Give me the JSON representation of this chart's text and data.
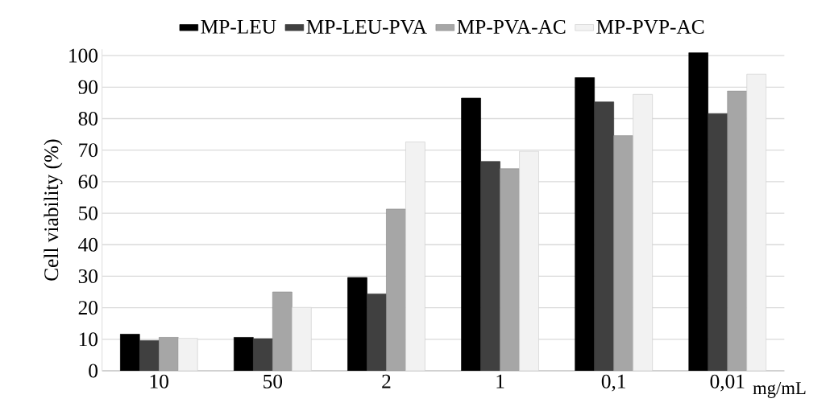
{
  "chart_data": {
    "type": "bar",
    "ylabel": "Cell viability (%)",
    "xlabel": "mg/mL",
    "categories": [
      "10",
      "50",
      "2",
      "1",
      "0,1",
      "0,01"
    ],
    "series": [
      {
        "name": "MP-LEU",
        "color": "#000000",
        "values": [
          11.6,
          10.6,
          29.6,
          86.5,
          93.0,
          100.9
        ]
      },
      {
        "name": "MP-LEU-PVA",
        "color": "#404040",
        "values": [
          9.6,
          10.2,
          24.4,
          66.4,
          85.3,
          81.6
        ]
      },
      {
        "name": "MP-PVA-AC",
        "color": "#a6a6a6",
        "values": [
          10.6,
          25.0,
          51.3,
          64.1,
          74.6,
          88.8
        ]
      },
      {
        "name": "MP-PVP-AC",
        "color": "#f2f2f2",
        "values": [
          10.3,
          20.1,
          72.6,
          69.6,
          87.7,
          94.1
        ]
      }
    ],
    "ylim": [
      0,
      102
    ],
    "yticks": [
      0,
      10,
      20,
      30,
      40,
      50,
      60,
      70,
      80,
      90,
      100
    ],
    "grid": "y",
    "legend": "top"
  }
}
